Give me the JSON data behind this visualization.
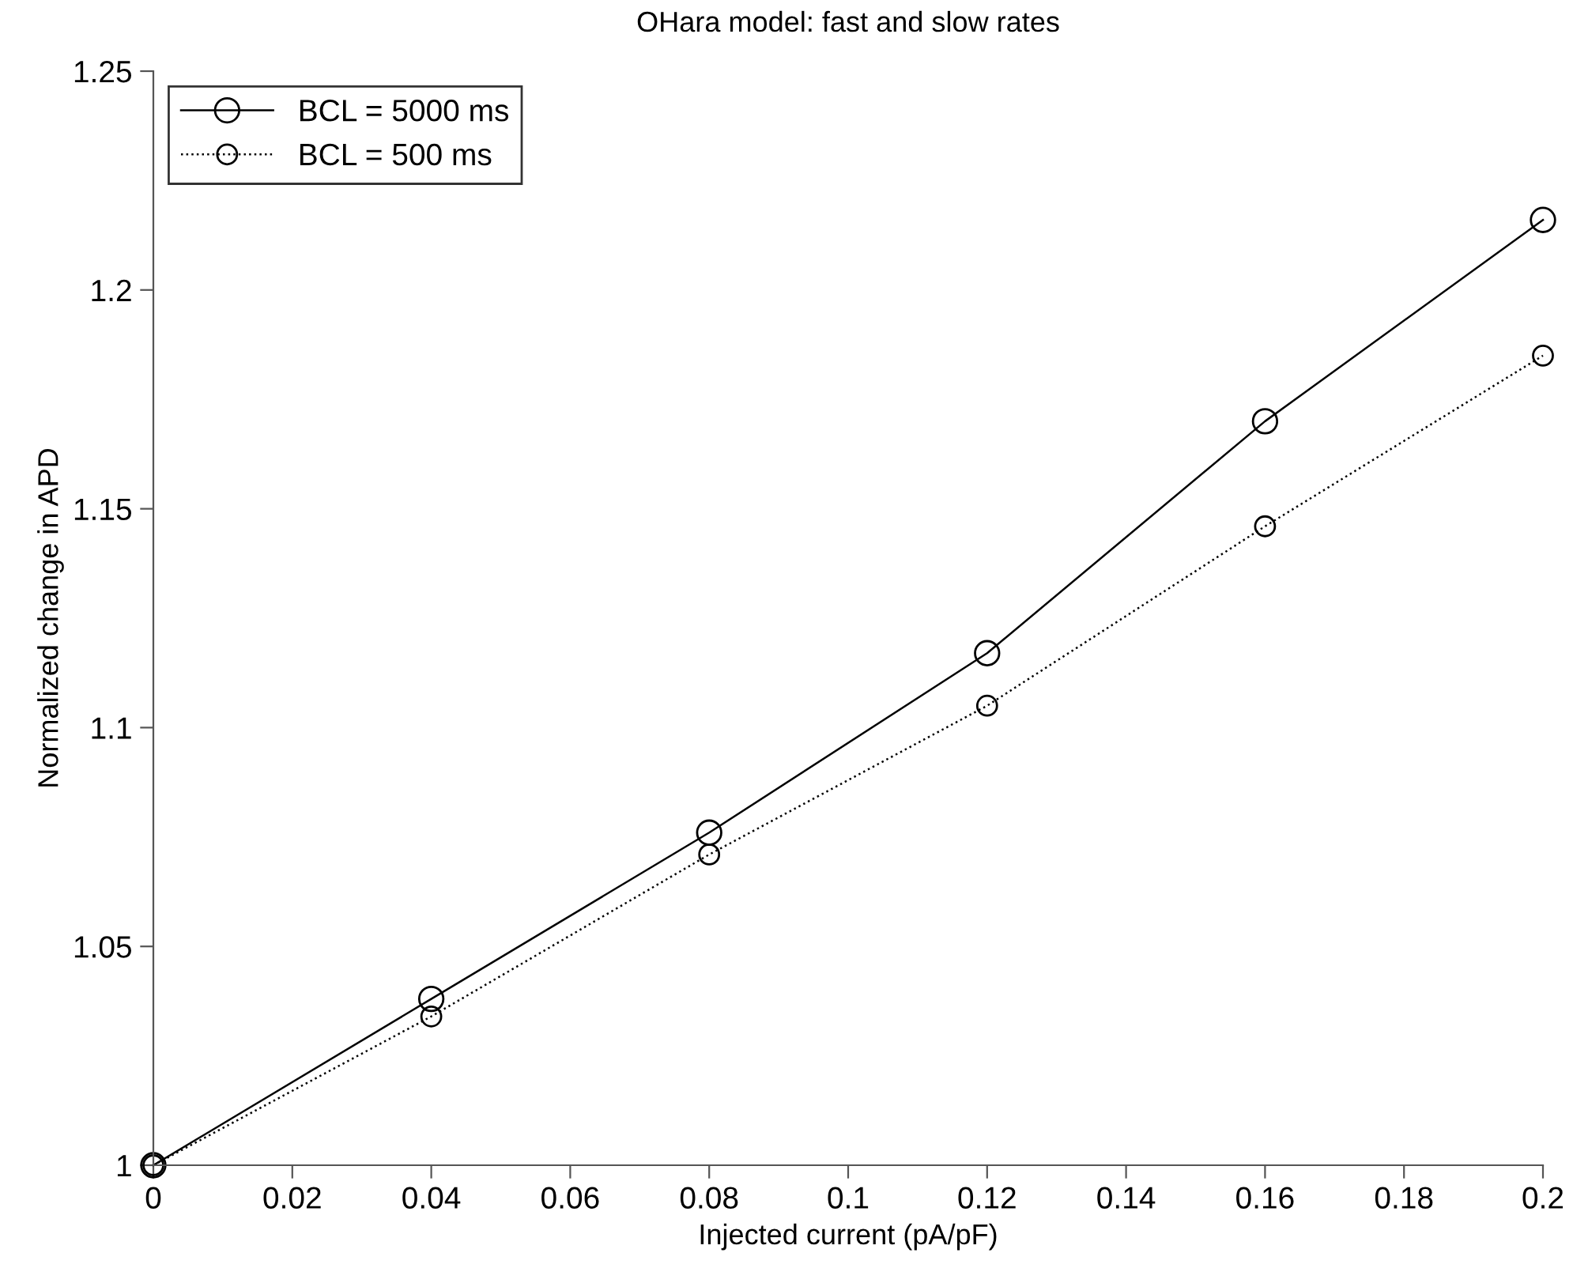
{
  "chart_data": {
    "type": "line",
    "title": "OHara model: fast and slow rates",
    "xlabel": "Injected current (pA/pF)",
    "ylabel": "Normalized change in APD",
    "x": [
      0,
      0.04,
      0.08,
      0.12,
      0.16,
      0.2
    ],
    "series": [
      {
        "name": "BCL = 5000 ms",
        "color": "#000000",
        "line_style": "solid",
        "values": [
          1.0,
          1.038,
          1.076,
          1.117,
          1.17,
          1.216
        ]
      },
      {
        "name": "BCL = 500 ms",
        "color": "#000000",
        "line_style": "dotted",
        "values": [
          1.0,
          1.034,
          1.071,
          1.105,
          1.146,
          1.185
        ]
      }
    ],
    "marker": "circle",
    "grid": false,
    "legend": "top left",
    "xlim": [
      0,
      0.2
    ],
    "xticks": [
      0,
      0.02,
      0.04,
      0.06,
      0.08,
      0.1,
      0.12,
      0.14,
      0.16,
      0.18,
      0.2
    ],
    "ylim": [
      1,
      1.25
    ],
    "yticks": [
      1,
      1.05,
      1.1,
      1.15,
      1.2,
      1.25
    ]
  }
}
